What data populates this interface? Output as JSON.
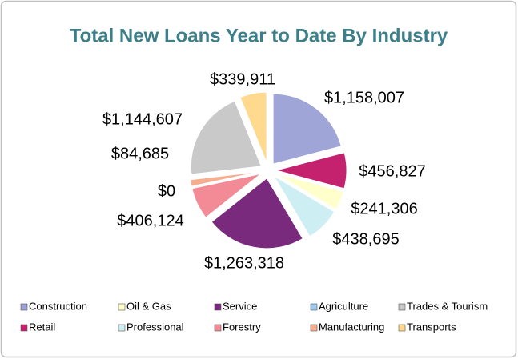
{
  "chart_data": {
    "type": "pie",
    "title": "Total New Loans Year to Date By Industry",
    "categories": [
      "Construction",
      "Retail",
      "Oil & Gas",
      "Professional",
      "Service",
      "Forestry",
      "Agriculture",
      "Manufacturing",
      "Trades & Tourism",
      "Transports"
    ],
    "values": [
      1158007,
      456827,
      241306,
      438695,
      1263318,
      406124,
      0,
      84685,
      1144607,
      339911
    ],
    "value_labels": [
      "$1,158,007",
      "$456,827",
      "$241,306",
      "$438,695",
      "$1,263,318",
      "$406,124",
      "$0",
      "$84,685",
      "$1,144,607",
      "$339,911"
    ],
    "colors": [
      "#a0a5d8",
      "#c4226f",
      "#ffffcc",
      "#cdeef2",
      "#7a2a7d",
      "#f28b96",
      "#9fc8ef",
      "#f7ad8e",
      "#c9c9c9",
      "#ffd98e"
    ],
    "legend": "bottom"
  }
}
